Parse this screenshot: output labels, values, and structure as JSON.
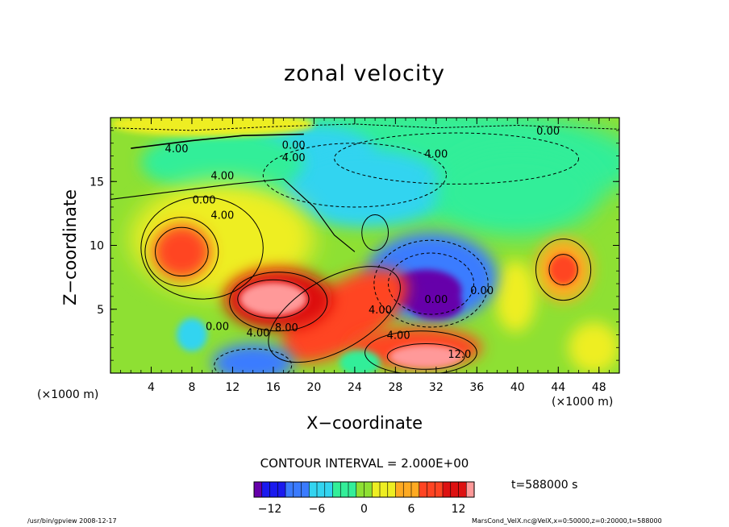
{
  "chart_data": {
    "type": "heatmap",
    "title": "zonal velocity",
    "xlabel": "X−coordinate",
    "ylabel": "Z−coordinate",
    "x_unit": "(×1000 m)",
    "y_unit": "(×1000 m)",
    "xlim": [
      0,
      50
    ],
    "ylim": [
      0,
      20
    ],
    "x_ticks": [
      4,
      8,
      12,
      16,
      20,
      24,
      28,
      32,
      36,
      40,
      44,
      48
    ],
    "y_ticks": [
      5,
      10,
      15
    ],
    "contour_interval_text": "CONTOUR INTERVAL = 2.000E+00",
    "colorbar": {
      "ticks": [
        -12,
        -6,
        0,
        6,
        12
      ],
      "tick_labels": [
        "−12",
        "−6",
        "0",
        "6",
        "12"
      ],
      "range": [
        -14,
        14
      ],
      "colors": [
        "#6600aa",
        "#1a1aee",
        "#3a7bff",
        "#33d4f0",
        "#33ee99",
        "#8ee033",
        "#eeee22",
        "#ffaa22",
        "#ff4422",
        "#dd1111",
        "#ff9999"
      ]
    },
    "contour_labels": [
      {
        "text": "4.00",
        "x": 6.5,
        "y": 17.6
      },
      {
        "text": "0.00",
        "x": 18.0,
        "y": 17.9
      },
      {
        "text": "4.00",
        "x": 18.0,
        "y": 16.9
      },
      {
        "text": "4.00",
        "x": 11.0,
        "y": 15.5
      },
      {
        "text": "0.00",
        "x": 9.2,
        "y": 13.6
      },
      {
        "text": "4.00",
        "x": 11.0,
        "y": 12.4
      },
      {
        "text": "4.00",
        "x": 32.0,
        "y": 17.2
      },
      {
        "text": "0.00",
        "x": 43.0,
        "y": 19.0
      },
      {
        "text": "4.00",
        "x": 14.5,
        "y": 3.2
      },
      {
        "text": "8.00",
        "x": 17.3,
        "y": 3.6
      },
      {
        "text": "4.00",
        "x": 26.5,
        "y": 5.0
      },
      {
        "text": "4.00",
        "x": 28.3,
        "y": 3.0
      },
      {
        "text": "12.0",
        "x": 34.3,
        "y": 1.5
      },
      {
        "text": "0.00",
        "x": 10.5,
        "y": 3.7
      },
      {
        "text": "0.00",
        "x": 36.5,
        "y": 6.5
      },
      {
        "text": "0.00",
        "x": 32.0,
        "y": 5.8
      }
    ],
    "features": [
      {
        "kind": "min",
        "value": -12,
        "x": 31,
        "y": 6.5,
        "label": "strong westward core"
      },
      {
        "kind": "max",
        "value": 14,
        "x": 16,
        "y": 5.8,
        "label": "strong eastward core"
      },
      {
        "kind": "max",
        "value": 14,
        "x": 31,
        "y": 1.2,
        "label": "near-surface eastward core"
      },
      {
        "kind": "max",
        "value": 8,
        "x": 7,
        "y": 9.5,
        "label": "eastward eddy"
      },
      {
        "kind": "max",
        "value": 8,
        "x": 44.5,
        "y": 8.1,
        "label": "eastward eddy"
      },
      {
        "kind": "min",
        "value": -10,
        "x": 14,
        "y": 0.5,
        "label": "westward near surface"
      }
    ]
  },
  "annotations": {
    "time": "t=588000  s",
    "footer_left": "/usr/bin/gpview   2008-12-17",
    "footer_right": "MarsCond_VelX.nc@VelX,x=0:50000,z=0:20000,t=588000"
  }
}
